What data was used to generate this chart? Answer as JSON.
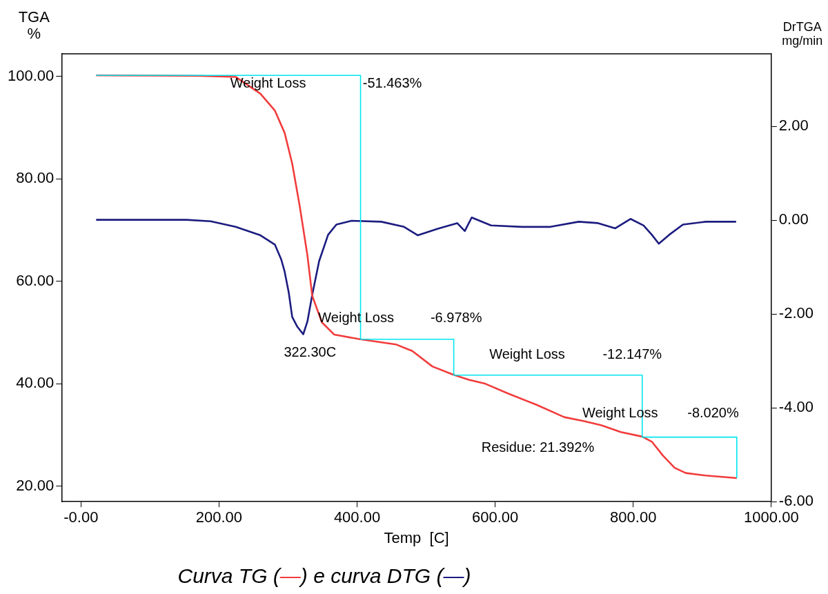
{
  "chart_data": {
    "type": "line",
    "xlabel": "Temp  [C]",
    "ylabel": "TGA\n%",
    "y2label": "DrTGA\nmg/min",
    "xlim": [
      -28,
      1000
    ],
    "xticks": [
      {
        "value": 0,
        "label": "-0.00"
      },
      {
        "value": 200,
        "label": "200.00"
      },
      {
        "value": 400,
        "label": "400.00"
      },
      {
        "value": 600,
        "label": "600.00"
      },
      {
        "value": 800,
        "label": "800.00"
      },
      {
        "value": 1000,
        "label": "1000.00"
      }
    ],
    "ylim": [
      17,
      104.4
    ],
    "yticks": [
      {
        "value": 20,
        "label": "20.00"
      },
      {
        "value": 40,
        "label": "40.00"
      },
      {
        "value": 60,
        "label": "60.00"
      },
      {
        "value": 80,
        "label": "80.00"
      },
      {
        "value": 100,
        "label": "100.00"
      }
    ],
    "y2lim": [
      -6,
      3.55
    ],
    "y2ticks": [
      {
        "value": -6,
        "label": "-6.00"
      },
      {
        "value": -4,
        "label": "-4.00"
      },
      {
        "value": -2,
        "label": "-2.00"
      },
      {
        "value": 0,
        "label": "0.00"
      },
      {
        "value": 2,
        "label": "2.00"
      }
    ],
    "grid": false,
    "marker": "none",
    "series": [
      {
        "color": "#f23c3c",
        "x": [
          22,
          174,
          224,
          260,
          281,
          295,
          306,
          317,
          328,
          335,
          349,
          367,
          404.6,
          456,
          480,
          509,
          539,
          562,
          586,
          619,
          660,
          700,
          729,
          754,
          782,
          813,
          827,
          843,
          860,
          876,
          905,
          950
        ],
        "values": [
          100.2,
          100.1,
          99.9,
          96.6,
          93.3,
          89.0,
          83.0,
          74.6,
          65.1,
          57.2,
          52.0,
          49.6,
          48.7,
          47.7,
          46.4,
          43.4,
          41.8,
          40.8,
          40.0,
          38.1,
          35.9,
          33.5,
          32.7,
          31.9,
          30.6,
          29.7,
          28.7,
          26.0,
          23.6,
          22.6,
          22.1,
          21.6
        ]
      },
      {
        "axis": "y2",
        "color": "#1c1c80",
        "x": [
          22,
          81,
          153,
          188,
          224,
          260,
          281,
          290,
          295,
          301,
          306,
          313,
          322,
          328,
          335,
          345,
          358,
          370,
          392,
          435,
          468,
          488,
          517,
          545,
          556,
          566,
          594,
          639,
          680,
          721,
          749,
          774,
          796,
          815,
          827,
          837,
          852,
          872,
          905,
          949
        ],
        "values": [
          0.01,
          0.01,
          0.01,
          -0.02,
          -0.14,
          -0.32,
          -0.52,
          -0.83,
          -1.09,
          -1.54,
          -2.06,
          -2.26,
          -2.43,
          -2.16,
          -1.59,
          -0.87,
          -0.31,
          -0.09,
          -0.01,
          -0.03,
          -0.14,
          -0.32,
          -0.18,
          -0.06,
          -0.23,
          0.06,
          -0.11,
          -0.14,
          -0.14,
          -0.03,
          -0.06,
          -0.17,
          0.03,
          -0.11,
          -0.31,
          -0.5,
          -0.31,
          -0.09,
          -0.03,
          -0.03
        ]
      },
      {
        "type": "step",
        "color": "#00e5ee",
        "x": [
          22,
          405,
          540,
          813,
          950
        ],
        "values": [
          100.2,
          48.7,
          41.7,
          29.6,
          21.6
        ]
      }
    ],
    "annotations": [
      "Weight Loss",
      "-51.463%",
      "Weight Loss",
      "-6.978%",
      "Weight Loss",
      "-12.147%",
      "Weight Loss",
      "-8.020%",
      "Residue: 21.392%",
      "322.30C",
      "Curva TG (—) e curva DTG (—)"
    ]
  }
}
